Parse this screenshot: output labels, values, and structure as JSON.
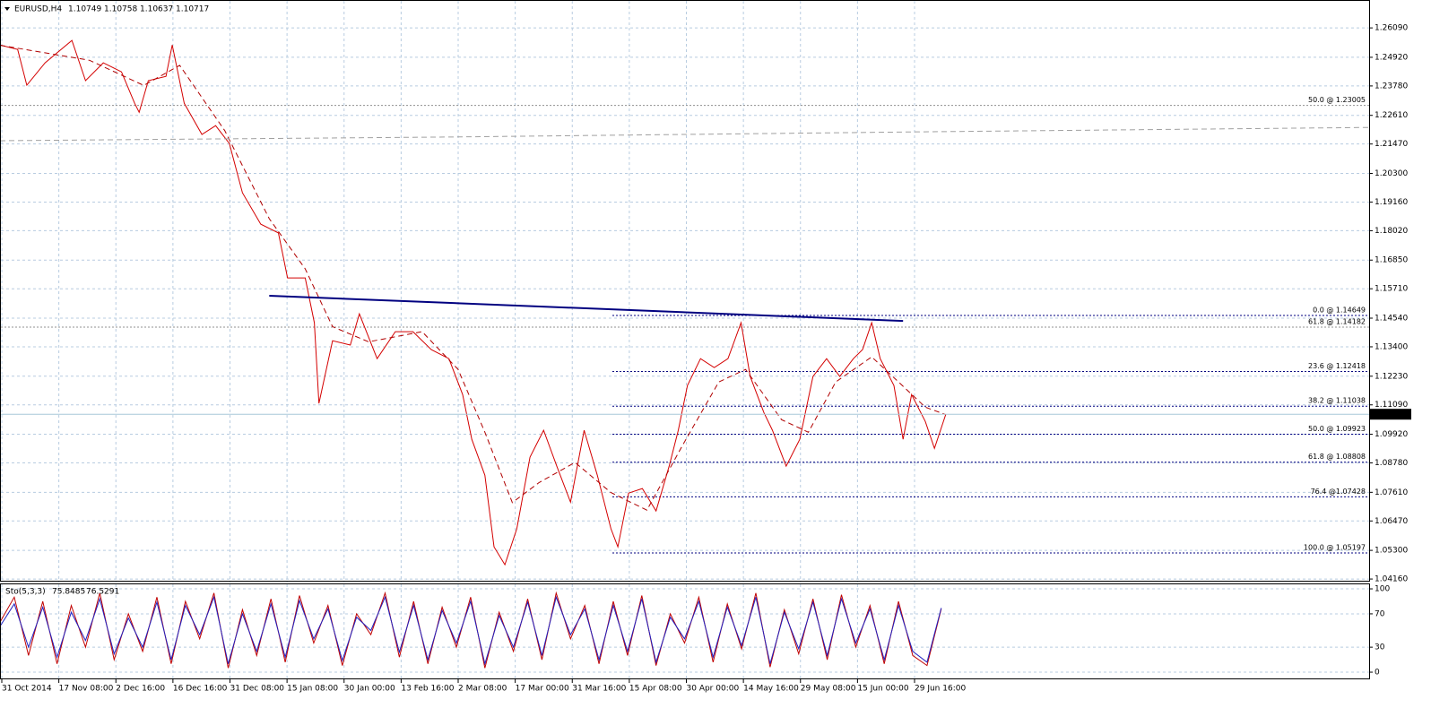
{
  "chart_data": [
    {
      "type": "line",
      "title": "EURUSD,H4",
      "ohlc": [
        1.10749,
        1.10758,
        1.10637,
        1.10717
      ],
      "xlim": [
        0,
        24
      ],
      "ylim": [
        1.0402,
        1.272
      ],
      "grid": true,
      "xticks": [
        {
          "value": 0,
          "label": "31 Oct 2014"
        },
        {
          "value": 1,
          "label": "17 Nov 08:00"
        },
        {
          "value": 2,
          "label": "2 Dec 16:00"
        },
        {
          "value": 3,
          "label": "16 Dec 16:00"
        },
        {
          "value": 4,
          "label": "31 Dec 08:00"
        },
        {
          "value": 5,
          "label": "15 Jan 08:00"
        },
        {
          "value": 6,
          "label": "30 Jan 00:00"
        },
        {
          "value": 7,
          "label": "13 Feb 16:00"
        },
        {
          "value": 8,
          "label": "2 Mar 08:00"
        },
        {
          "value": 9,
          "label": "17 Mar 00:00"
        },
        {
          "value": 10,
          "label": "31 Mar 16:00"
        },
        {
          "value": 11,
          "label": "15 Apr 08:00"
        },
        {
          "value": 12,
          "label": "30 Apr 00:00"
        },
        {
          "value": 13,
          "label": "14 May 16:00"
        },
        {
          "value": 14,
          "label": "29 May 08:00"
        },
        {
          "value": 15,
          "label": "15 Jun 00:00"
        },
        {
          "value": 16,
          "label": "29 Jun 16:00"
        }
      ],
      "yticks": [
        {
          "value": 1.2609,
          "label": "1.26090"
        },
        {
          "value": 1.2492,
          "label": "1.24920"
        },
        {
          "value": 1.2378,
          "label": "1.23780"
        },
        {
          "value": 1.2261,
          "label": "1.22610"
        },
        {
          "value": 1.2147,
          "label": "1.21470"
        },
        {
          "value": 1.203,
          "label": "1.20300"
        },
        {
          "value": 1.1916,
          "label": "1.19160"
        },
        {
          "value": 1.1802,
          "label": "1.18020"
        },
        {
          "value": 1.1685,
          "label": "1.16850"
        },
        {
          "value": 1.1571,
          "label": "1.15710"
        },
        {
          "value": 1.1454,
          "label": "1.14540"
        },
        {
          "value": 1.134,
          "label": "1.13400"
        },
        {
          "value": 1.1223,
          "label": "1.12230"
        },
        {
          "value": 1.1109,
          "label": "1.11090"
        },
        {
          "value": 1.0992,
          "label": "1.09920"
        },
        {
          "value": 1.0878,
          "label": "1.08780"
        },
        {
          "value": 1.0761,
          "label": "1.07610"
        },
        {
          "value": 1.0647,
          "label": "1.06470"
        },
        {
          "value": 1.053,
          "label": "1.05300"
        },
        {
          "value": 1.0416,
          "label": "1.04160"
        }
      ],
      "series": [
        {
          "color": "#d40000",
          "dashed": false,
          "x": [
            0,
            0.31,
            0.47,
            0.79,
            1.26,
            1.5,
            1.81,
            2.13,
            2.36,
            2.44,
            2.6,
            2.91,
            3.02,
            3.23,
            3.54,
            3.78,
            4.02,
            4.25,
            4.57,
            4.88,
            5.04,
            5.35,
            5.51,
            5.59,
            5.83,
            6.14,
            6.3,
            6.61,
            6.93,
            7.24,
            7.56,
            7.87,
            8.11,
            8.27,
            8.5,
            8.66,
            8.85,
            9.06,
            9.29,
            9.53,
            9.76,
            10,
            10.24,
            10.47,
            10.71,
            10.83,
            11.02,
            11.26,
            11.5,
            11.73,
            11.89,
            12.05,
            12.28,
            12.52,
            12.76,
            12.99,
            13.15,
            13.39,
            13.54,
            13.78,
            14.02,
            14.25,
            14.49,
            14.72,
            14.96,
            15.12,
            15.28,
            15.43,
            15.67,
            15.83,
            15.98,
            16.22,
            16.38,
            16.58
          ],
          "values": [
            1.2541,
            1.2523,
            1.2381,
            1.247,
            1.2559,
            1.2399,
            1.247,
            1.2434,
            1.2309,
            1.2273,
            1.2399,
            1.2416,
            1.2541,
            1.2309,
            1.2185,
            1.222,
            1.2149,
            1.1953,
            1.1828,
            1.1793,
            1.1614,
            1.1614,
            1.1436,
            1.1115,
            1.1364,
            1.1347,
            1.1471,
            1.1293,
            1.14,
            1.14,
            1.1329,
            1.1293,
            1.115,
            1.0972,
            1.0829,
            1.0544,
            1.0473,
            1.0616,
            1.0901,
            1.1008,
            1.0865,
            1.0722,
            1.1008,
            1.0829,
            1.0616,
            1.0544,
            1.0758,
            1.0776,
            1.0687,
            1.0865,
            1.1008,
            1.1186,
            1.1293,
            1.1257,
            1.1293,
            1.1436,
            1.1222,
            1.1079,
            1.1008,
            1.0865,
            1.0972,
            1.1222,
            1.1293,
            1.1222,
            1.1293,
            1.1329,
            1.1436,
            1.1293,
            1.1186,
            1.0972,
            1.115,
            1.1043,
            1.0936,
            1.1072
          ]
        },
        {
          "color": "#b00000",
          "dashed": true,
          "x": [
            0,
            1.57,
            2.52,
            3.15,
            3.94,
            4.72,
            5.35,
            5.83,
            6.46,
            7.4,
            8.03,
            8.5,
            8.98,
            9.45,
            10.08,
            10.71,
            11.34,
            11.97,
            12.6,
            13.07,
            13.7,
            14.17,
            14.65,
            15.28,
            15.75,
            16.22,
            16.58
          ],
          "values": [
            1.254,
            1.248,
            1.238,
            1.246,
            1.22,
            1.185,
            1.165,
            1.142,
            1.136,
            1.14,
            1.125,
            1.1,
            1.072,
            1.08,
            1.088,
            1.076,
            1.069,
            1.095,
            1.12,
            1.125,
            1.105,
            1.1,
            1.12,
            1.13,
            1.12,
            1.11,
            1.107
          ]
        },
        {
          "color": "#a0a0a0",
          "dashed": true,
          "x": [
            0,
            8,
            16,
            24
          ],
          "values": [
            1.216,
            1.2175,
            1.2195,
            1.2213
          ]
        },
        {
          "color": "#000080",
          "dashed": false,
          "x": [
            4.72,
            15.83
          ],
          "values": [
            1.1543,
            1.1443
          ]
        }
      ],
      "fib_color": "#000080",
      "fib_levels": [
        {
          "label": "0.0 @ 1.14649",
          "value": 1.14649
        },
        {
          "label": "23.6 @ 1.12418",
          "value": 1.12418
        },
        {
          "label": "38.2 @ 1.11038",
          "value": 1.11038
        },
        {
          "label": "50.0 @ 1.09923",
          "value": 1.09923
        },
        {
          "label": "61.8 @ 1.08808",
          "value": 1.08808
        },
        {
          "label": "76.4 @1.07428",
          "value": 1.07428
        },
        {
          "label": "100.0 @ 1.05197",
          "value": 1.05197
        }
      ],
      "level_color": "#909090",
      "levels": [
        {
          "label": "61.8 @ 1.14182",
          "value": 1.14182
        },
        {
          "label": "50.0 @ 1.23005",
          "value": 1.23005
        }
      ]
    },
    {
      "type": "line",
      "title": "Sto(5,3,3)",
      "readings": [
        75.8485,
        76.5291
      ],
      "xlim": [
        0,
        24
      ],
      "ylim": [
        -7.5,
        106.5
      ],
      "yticks": [
        100,
        70,
        30,
        0
      ],
      "grid": true,
      "series": [
        {
          "color": "#c00000",
          "dashed": false,
          "x": [
            0,
            0.25,
            0.5,
            0.75,
            1,
            1.25,
            1.5,
            1.75,
            2,
            2.25,
            2.5,
            2.75,
            3,
            3.25,
            3.5,
            3.75,
            4,
            4.25,
            4.5,
            4.75,
            5,
            5.25,
            5.5,
            5.75,
            6,
            6.25,
            6.5,
            6.75,
            7,
            7.25,
            7.5,
            7.75,
            8,
            8.25,
            8.5,
            8.75,
            9,
            9.25,
            9.5,
            9.75,
            10,
            10.25,
            10.5,
            10.75,
            11,
            11.25,
            11.5,
            11.75,
            12,
            12.25,
            12.5,
            12.75,
            13,
            13.25,
            13.5,
            13.75,
            14,
            14.25,
            14.5,
            14.75,
            15,
            15.25,
            15.5,
            15.75,
            16,
            16.25,
            16.5
          ],
          "values": [
            60,
            90,
            20,
            85,
            10,
            80,
            30,
            95,
            15,
            70,
            25,
            90,
            10,
            85,
            40,
            95,
            5,
            75,
            20,
            88,
            12,
            92,
            35,
            80,
            8,
            70,
            45,
            95,
            18,
            85,
            10,
            78,
            30,
            90,
            5,
            72,
            25,
            88,
            15,
            95,
            40,
            80,
            10,
            85,
            20,
            92,
            8,
            70,
            35,
            90,
            12,
            82,
            28,
            95,
            6,
            75,
            22,
            88,
            15,
            93,
            30,
            80,
            10,
            85,
            20,
            8,
            76
          ]
        },
        {
          "color": "#2020c0",
          "dashed": false,
          "x": [
            0,
            0.25,
            0.5,
            0.75,
            1,
            1.25,
            1.5,
            1.75,
            2,
            2.25,
            2.5,
            2.75,
            3,
            3.25,
            3.5,
            3.75,
            4,
            4.25,
            4.5,
            4.75,
            5,
            5.25,
            5.5,
            5.75,
            6,
            6.25,
            6.5,
            6.75,
            7,
            7.25,
            7.5,
            7.75,
            8,
            8.25,
            8.5,
            8.75,
            9,
            9.25,
            9.5,
            9.75,
            10,
            10.25,
            10.5,
            10.75,
            11,
            11.25,
            11.5,
            11.75,
            12,
            12.25,
            12.5,
            12.75,
            13,
            13.25,
            13.5,
            13.75,
            14,
            14.25,
            14.5,
            14.75,
            15,
            15.25,
            15.5,
            15.75,
            16,
            16.25,
            16.5
          ],
          "values": [
            55,
            82,
            30,
            78,
            18,
            72,
            38,
            88,
            22,
            65,
            30,
            84,
            15,
            80,
            45,
            90,
            10,
            70,
            25,
            82,
            18,
            86,
            40,
            76,
            14,
            66,
            50,
            90,
            24,
            80,
            15,
            74,
            35,
            85,
            10,
            68,
            30,
            84,
            20,
            90,
            45,
            76,
            15,
            80,
            25,
            88,
            12,
            66,
            40,
            85,
            18,
            78,
            32,
            90,
            10,
            72,
            28,
            84,
            20,
            88,
            35,
            76,
            15,
            80,
            25,
            12,
            77
          ]
        }
      ]
    }
  ]
}
